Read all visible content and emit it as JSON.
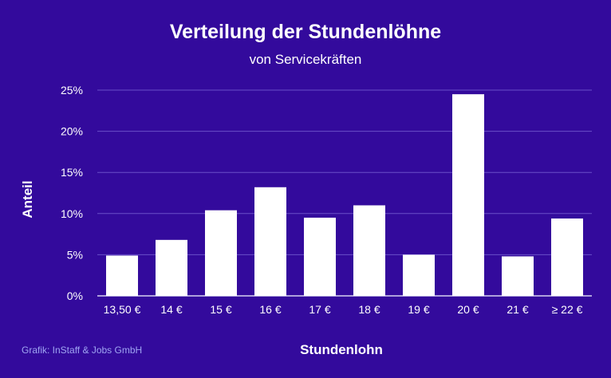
{
  "chart_data": {
    "type": "bar",
    "title": "Verteilung der Stundenlöhne",
    "subtitle": "von Servicekräften",
    "xlabel": "Stundenlohn",
    "ylabel": "Anteil",
    "categories": [
      "13,50 €",
      "14 €",
      "15 €",
      "16 €",
      "17 €",
      "18 €",
      "19 €",
      "20 €",
      "21 €",
      "≥ 22 €"
    ],
    "values": [
      4.9,
      6.8,
      10.4,
      13.2,
      9.5,
      11.0,
      5.0,
      24.5,
      4.8,
      9.4
    ],
    "unit": "%",
    "ylim": [
      0,
      25
    ],
    "yticks": [
      0,
      5,
      10,
      15,
      20,
      25
    ],
    "ytick_labels": [
      "0%",
      "5%",
      "10%",
      "15%",
      "20%",
      "25%"
    ],
    "grid": true,
    "legend": false
  },
  "credit": "Grafik: InStaff & Jobs GmbH",
  "colors": {
    "background": "#330a9c",
    "bar": "#ffffff",
    "gridline": "#6a4fc8",
    "baseline": "#d8d2f0",
    "text": "#ffffff",
    "credit": "#9fa4f2"
  }
}
